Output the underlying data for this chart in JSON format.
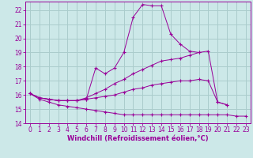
{
  "xlabel": "Windchill (Refroidissement éolien,°C)",
  "bg_color": "#cce8e8",
  "grid_color": "#aacccc",
  "line_color": "#990099",
  "xlim": [
    -0.5,
    23.5
  ],
  "ylim": [
    14,
    22.6
  ],
  "yticks": [
    14,
    15,
    16,
    17,
    18,
    19,
    20,
    21,
    22
  ],
  "xticks": [
    0,
    1,
    2,
    3,
    4,
    5,
    6,
    7,
    8,
    9,
    10,
    11,
    12,
    13,
    14,
    15,
    16,
    17,
    18,
    19,
    20,
    21,
    22,
    23
  ],
  "series1_x": [
    0,
    1,
    2,
    3,
    4,
    5,
    6,
    7,
    8,
    9,
    10,
    11,
    12,
    13,
    14,
    15,
    16,
    17,
    18,
    19,
    20,
    21,
    22,
    23
  ],
  "series1_y": [
    16.1,
    15.8,
    15.7,
    15.6,
    15.6,
    15.6,
    15.7,
    17.9,
    17.5,
    17.9,
    19.0,
    21.5,
    22.4,
    22.3,
    22.3,
    20.3,
    19.6,
    19.1,
    19.0,
    null,
    null,
    null,
    null,
    null
  ],
  "series2_x": [
    0,
    1,
    2,
    3,
    4,
    5,
    6,
    7,
    8,
    9,
    10,
    11,
    12,
    13,
    14,
    15,
    16,
    17,
    18,
    19,
    20,
    21,
    22,
    23
  ],
  "series2_y": [
    16.1,
    15.8,
    15.7,
    15.6,
    15.6,
    15.6,
    15.8,
    16.1,
    16.4,
    16.8,
    17.1,
    17.5,
    17.8,
    18.1,
    18.4,
    18.5,
    18.6,
    18.8,
    19.0,
    19.1,
    15.5,
    15.3,
    null,
    null
  ],
  "series3_x": [
    0,
    1,
    2,
    3,
    4,
    5,
    6,
    7,
    8,
    9,
    10,
    11,
    12,
    13,
    14,
    15,
    16,
    17,
    18,
    19,
    20,
    21,
    22,
    23
  ],
  "series3_y": [
    16.1,
    15.8,
    15.7,
    15.6,
    15.6,
    15.6,
    15.7,
    15.8,
    15.9,
    16.0,
    16.2,
    16.4,
    16.5,
    16.7,
    16.8,
    16.9,
    17.0,
    17.0,
    17.1,
    17.0,
    15.5,
    15.3,
    null,
    null
  ],
  "series4_x": [
    0,
    1,
    2,
    3,
    4,
    5,
    6,
    7,
    8,
    9,
    10,
    11,
    12,
    13,
    14,
    15,
    16,
    17,
    18,
    19,
    20,
    21,
    22,
    23
  ],
  "series4_y": [
    16.1,
    15.7,
    15.5,
    15.3,
    15.2,
    15.1,
    15.0,
    14.9,
    14.8,
    14.7,
    14.6,
    14.6,
    14.6,
    14.6,
    14.6,
    14.6,
    14.6,
    14.6,
    14.6,
    14.6,
    14.6,
    14.6,
    14.5,
    14.5
  ]
}
